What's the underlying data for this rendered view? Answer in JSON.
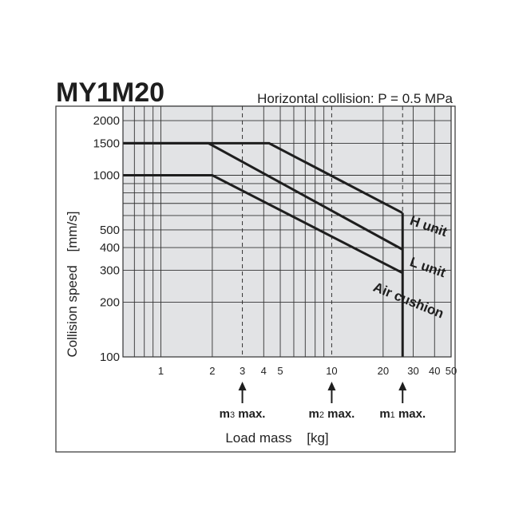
{
  "chart_data": {
    "type": "line",
    "title": "MY1M20",
    "subtitle": "Horizontal collision: P = 0.5 MPa",
    "xlabel": "Load mass",
    "xunit": "[kg]",
    "ylabel": "Collision speed",
    "yunit": "[mm/s]",
    "xscale": "log",
    "yscale": "log",
    "xlim": [
      0.6,
      50
    ],
    "ylim": [
      100,
      2400
    ],
    "grid": true,
    "x_ticks": [
      "1",
      "2",
      "3",
      "4",
      "5",
      "10",
      "20",
      "30",
      "40",
      "50"
    ],
    "y_ticks": [
      "100",
      "200",
      "300",
      "400",
      "500",
      "1000",
      "1500",
      "2000"
    ],
    "series": [
      {
        "name": "H unit",
        "points": [
          [
            0.6,
            1500
          ],
          [
            4.3,
            1500
          ],
          [
            26,
            620
          ]
        ]
      },
      {
        "name": "L unit",
        "points": [
          [
            0.6,
            1500
          ],
          [
            1.9,
            1500
          ],
          [
            26,
            390
          ]
        ]
      },
      {
        "name": "Air cushion",
        "points": [
          [
            0.6,
            1000
          ],
          [
            2,
            1000
          ],
          [
            26,
            290
          ]
        ]
      }
    ],
    "vertical_markers": [
      {
        "label_main": "m",
        "label_sub": "3",
        "label_tail": " max.",
        "x": 3,
        "style": "dashed"
      },
      {
        "label_main": "m",
        "label_sub": "2",
        "label_tail": " max.",
        "x": 10,
        "style": "dashed"
      },
      {
        "label_main": "m",
        "label_sub": "1",
        "label_tail": " max.",
        "x": 26,
        "style": "dashed"
      }
    ],
    "limit_line": {
      "x": 26,
      "y_range": [
        100,
        620
      ]
    }
  }
}
